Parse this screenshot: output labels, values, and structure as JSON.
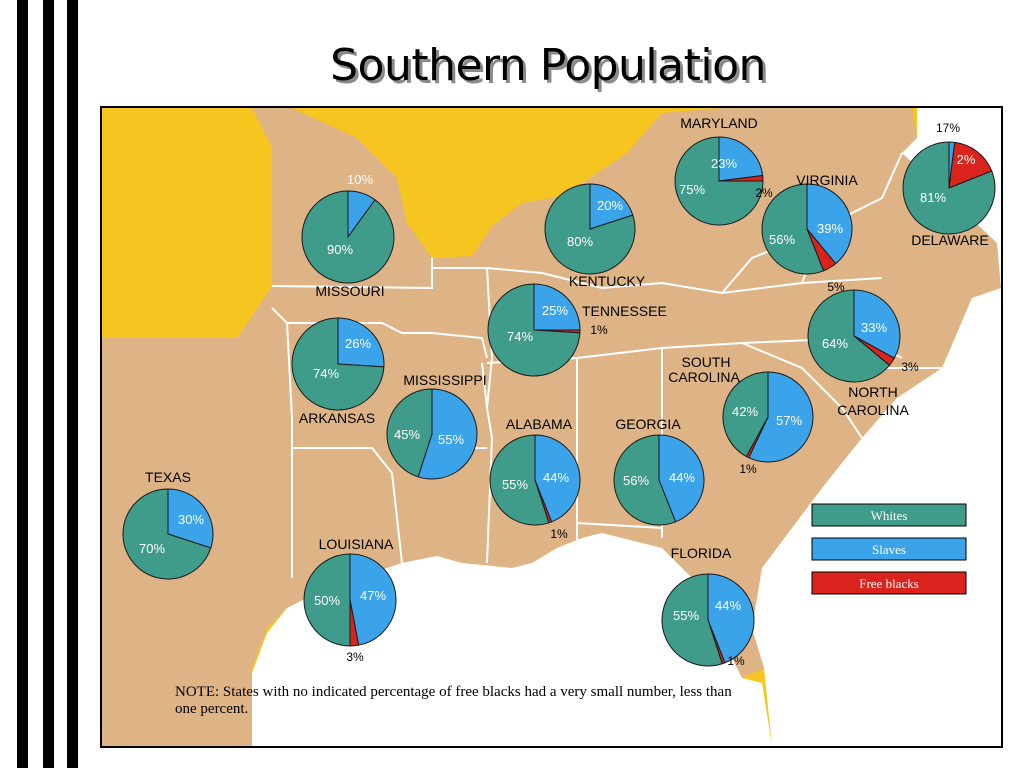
{
  "title": "Southern Population",
  "legend": [
    {
      "key": "white",
      "label": "Whites",
      "color": "#3f9b8a"
    },
    {
      "key": "slave",
      "label": "Slaves",
      "color": "#3aa3ea"
    },
    {
      "key": "free",
      "label": "Free blacks",
      "color": "#d9231c"
    }
  ],
  "note": "NOTE: States with no indicated percentage of free blacks had a very small number, less than one percent.",
  "states": [
    {
      "id": "maryland",
      "name": "MARYLAND",
      "white_label": "75%",
      "slave_label": "23%",
      "free_label": "2%",
      "white": 75,
      "slave": 23,
      "free": 2
    },
    {
      "id": "delaware",
      "name": "DELAWARE",
      "white_label": "81%",
      "slave_label": "2%",
      "free_label": "17%",
      "white": 81,
      "slave": 2,
      "free": 17
    },
    {
      "id": "virginia",
      "name": "VIRGINIA",
      "white_label": "56%",
      "slave_label": "39%",
      "free_label": "5%",
      "white": 56,
      "slave": 39,
      "free": 5
    },
    {
      "id": "missouri",
      "name": "MISSOURI",
      "white_label": "90%",
      "slave_label": "10%",
      "free_label": "",
      "white": 90,
      "slave": 10,
      "free": 0
    },
    {
      "id": "kentucky",
      "name": "KENTUCKY",
      "white_label": "80%",
      "slave_label": "20%",
      "free_label": "",
      "white": 80,
      "slave": 20,
      "free": 0
    },
    {
      "id": "tennessee",
      "name": "TENNESSEE",
      "white_label": "74%",
      "slave_label": "25%",
      "free_label": "1%",
      "white": 74,
      "slave": 25,
      "free": 1
    },
    {
      "id": "north-carolina",
      "name_line1": "NORTH",
      "name_line2": "CAROLINA",
      "white_label": "64%",
      "slave_label": "33%",
      "free_label": "3%",
      "white": 64,
      "slave": 33,
      "free": 3
    },
    {
      "id": "arkansas",
      "name": "ARKANSAS",
      "white_label": "74%",
      "slave_label": "26%",
      "free_label": "",
      "white": 74,
      "slave": 26,
      "free": 0
    },
    {
      "id": "mississippi",
      "name": "MISSISSIPPI",
      "white_label": "45%",
      "slave_label": "55%",
      "free_label": "",
      "white": 45,
      "slave": 55,
      "free": 0
    },
    {
      "id": "south-carolina",
      "name_line1": "SOUTH",
      "name_line2": "CAROLINA",
      "white_label": "42%",
      "slave_label": "57%",
      "free_label": "1%",
      "white": 42,
      "slave": 57,
      "free": 1
    },
    {
      "id": "alabama",
      "name": "ALABAMA",
      "white_label": "55%",
      "slave_label": "44%",
      "free_label": "1%",
      "white": 55,
      "slave": 44,
      "free": 1
    },
    {
      "id": "georgia",
      "name": "GEORGIA",
      "white_label": "56%",
      "slave_label": "44%",
      "free_label": "",
      "white": 56,
      "slave": 44,
      "free": 0
    },
    {
      "id": "texas",
      "name": "TEXAS",
      "white_label": "70%",
      "slave_label": "30%",
      "free_label": "",
      "white": 70,
      "slave": 30,
      "free": 0
    },
    {
      "id": "louisiana",
      "name": "LOUISIANA",
      "white_label": "50%",
      "slave_label": "47%",
      "free_label": "3%",
      "white": 50,
      "slave": 47,
      "free": 3
    },
    {
      "id": "florida",
      "name": "FLORIDA",
      "white_label": "55%",
      "slave_label": "44%",
      "free_label": "1%",
      "white": 55,
      "slave": 44,
      "free": 1
    }
  ]
}
